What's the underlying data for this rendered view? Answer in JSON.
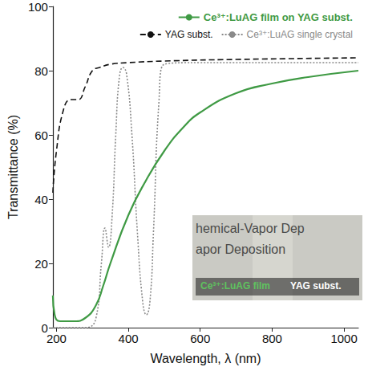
{
  "chart_data": {
    "type": "line",
    "x_label": "Wavelength, λ (nm)",
    "y_label": "Transmittance (%)",
    "xlim": [
      190,
      1040
    ],
    "xticks": [
      200,
      400,
      600,
      800,
      1000
    ],
    "ylim": [
      0,
      100
    ],
    "yticks": [
      0,
      20,
      40,
      60,
      80,
      100
    ],
    "grid": false,
    "legend": "upper right",
    "series": [
      {
        "name": "Ce³⁺:LuAG film on YAG subst.",
        "color": "#3f9a44",
        "line_style": "solid",
        "x": [
          190,
          195,
          210,
          250,
          280,
          310,
          330,
          350,
          400,
          450,
          500,
          550,
          600,
          700,
          800,
          900,
          1040
        ],
        "values": [
          10,
          4,
          2,
          2,
          3,
          7,
          13,
          20,
          35,
          46,
          55,
          62,
          67,
          73,
          76,
          78,
          80
        ]
      },
      {
        "name": "YAG subst.",
        "color": "#111111",
        "line_style": "dashed",
        "x": [
          190,
          200,
          220,
          240,
          260,
          280,
          300,
          320,
          350,
          400,
          500,
          700,
          1040
        ],
        "values": [
          42,
          55,
          68,
          71,
          71,
          75,
          80,
          81,
          82,
          82.5,
          83,
          83.5,
          84
        ]
      },
      {
        "name": "Ce³⁺:LuAG single crystal",
        "color": "#8a8a8a",
        "line_style": "dotted",
        "x": [
          190,
          280,
          310,
          325,
          335,
          345,
          355,
          365,
          375,
          385,
          395,
          410,
          425,
          440,
          450,
          460,
          470,
          485,
          500,
          600,
          1040
        ],
        "values": [
          0,
          0,
          3,
          20,
          31,
          25,
          35,
          60,
          78,
          81,
          79,
          60,
          30,
          8,
          4,
          8,
          30,
          70,
          82,
          82.5,
          82.5
        ]
      }
    ],
    "inset": {
      "photo_text": [
        "hemical-Vapor Dep",
        "apor Deposition"
      ],
      "labels": [
        {
          "text": "Ce³⁺:LuAG film",
          "color": "#5fc25f"
        },
        {
          "text": "YAG subst.",
          "color": "#ffffff"
        }
      ]
    }
  }
}
